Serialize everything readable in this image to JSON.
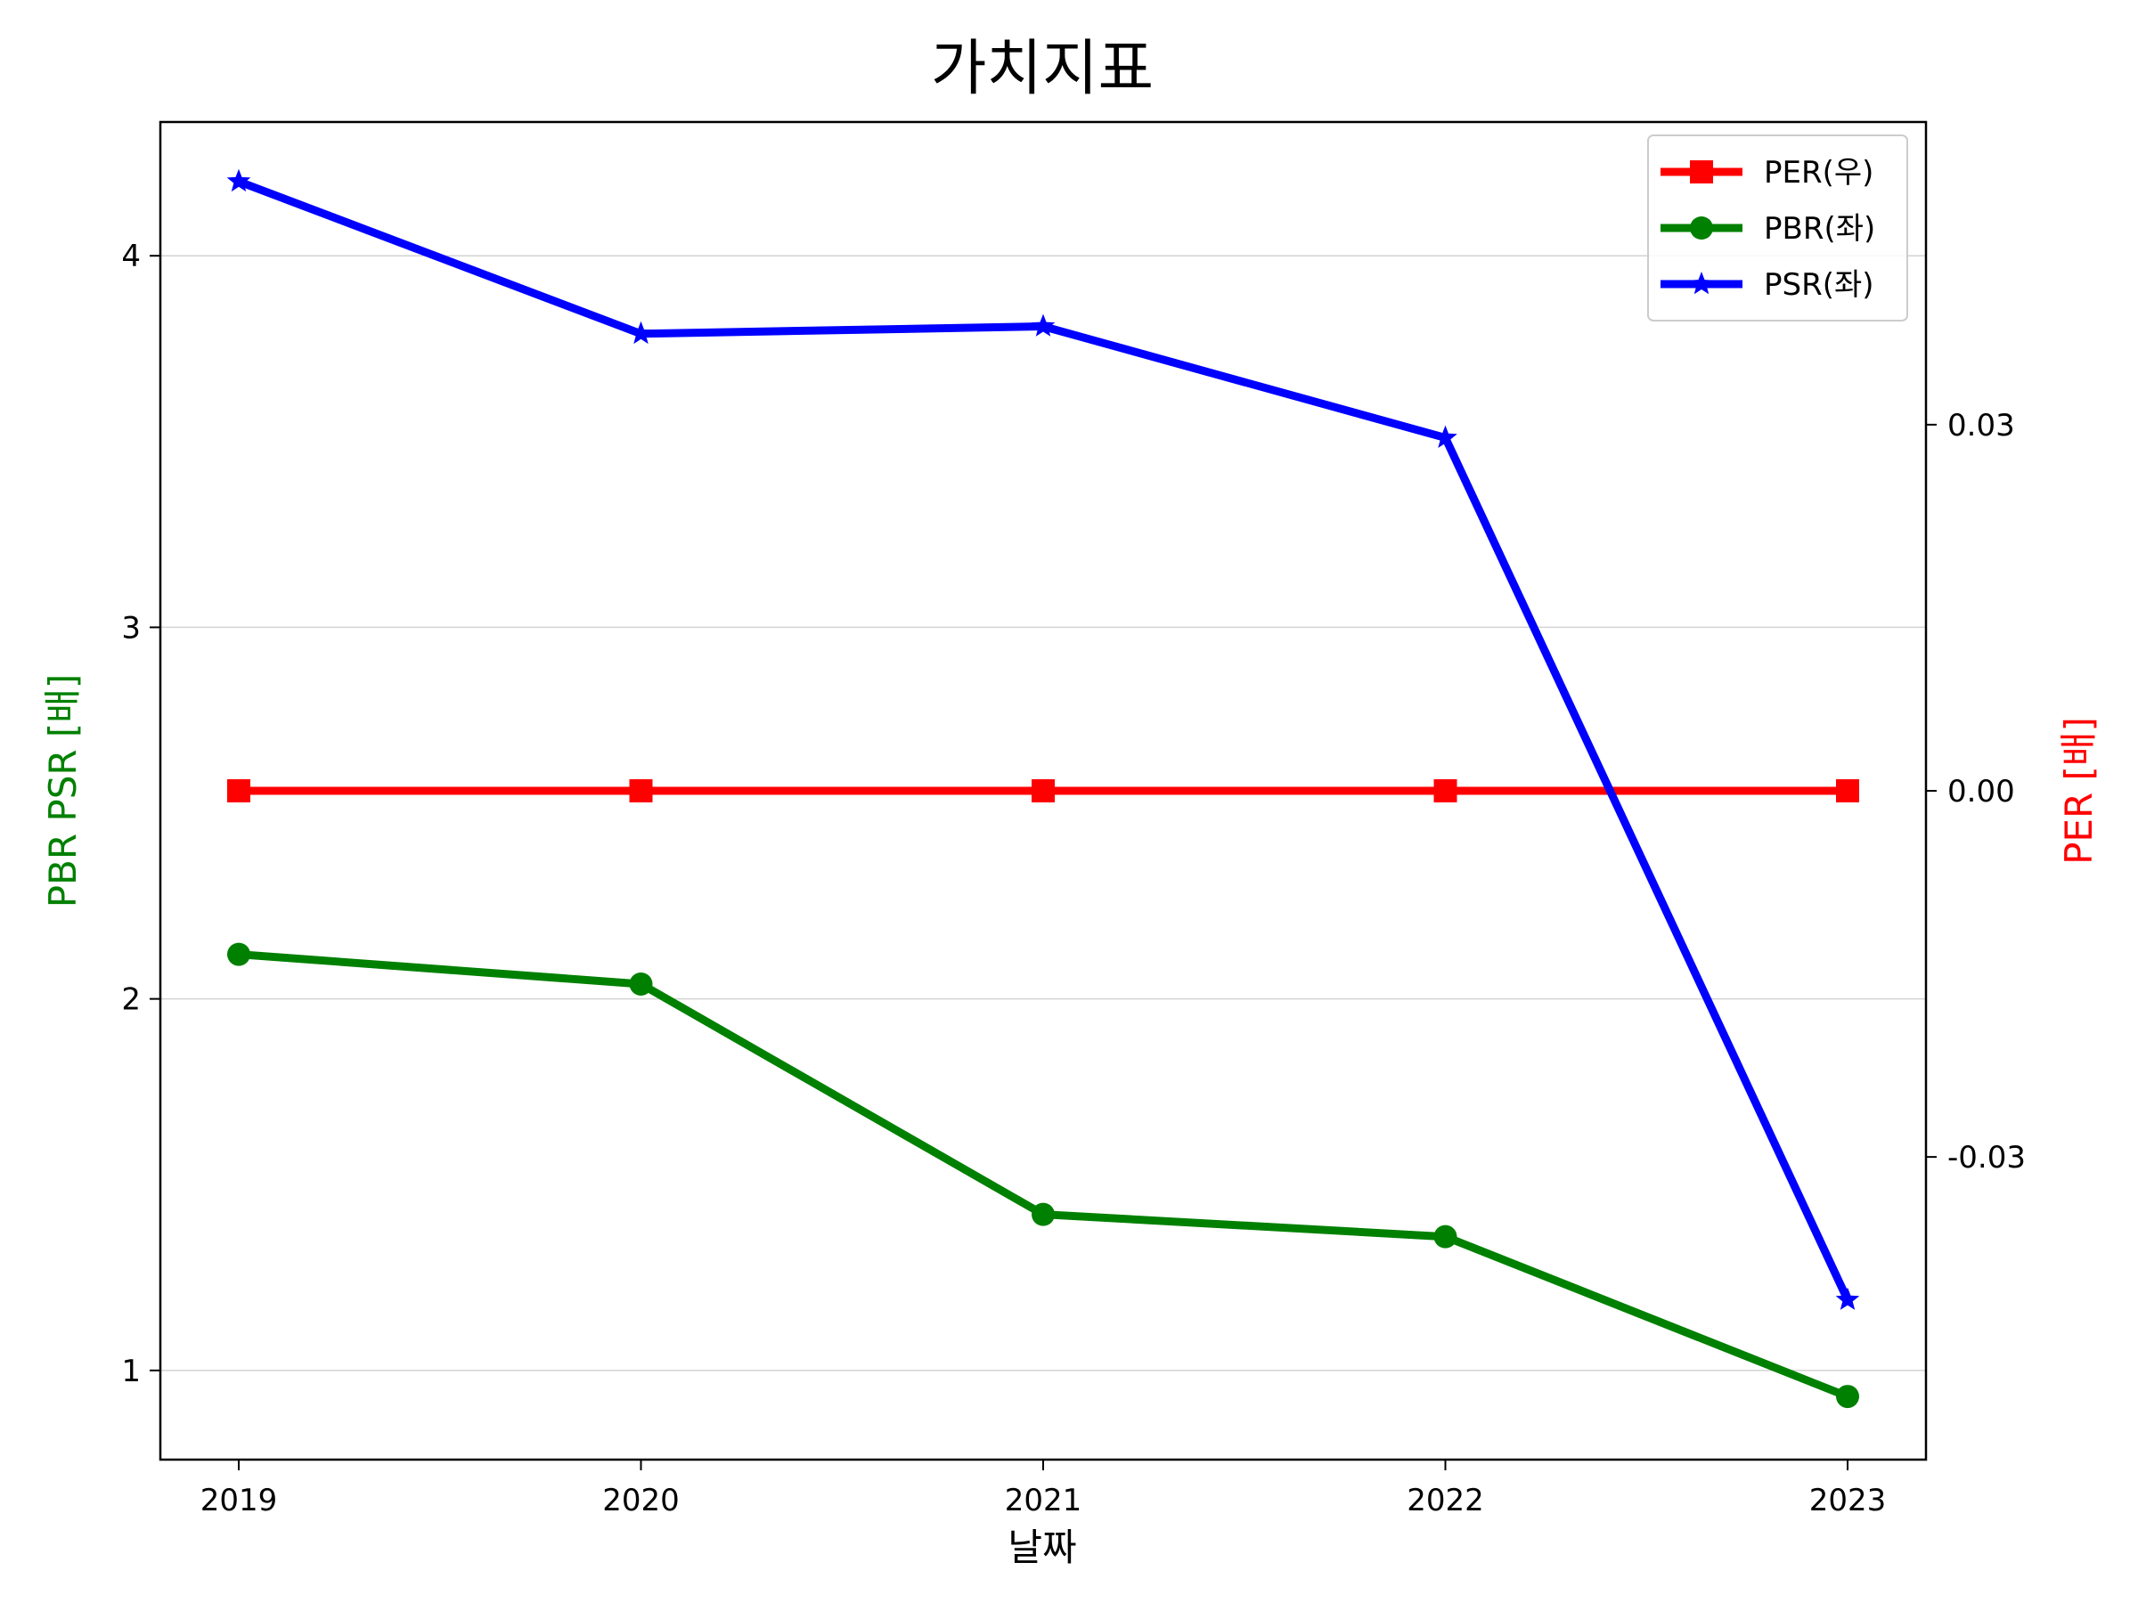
{
  "chart_data": {
    "type": "line",
    "title": "가치지표",
    "xlabel": "날짜",
    "ylabel_left": "PBR PSR [배]",
    "ylabel_right": "PER [배]",
    "categories": [
      "2019",
      "2020",
      "2021",
      "2022",
      "2023"
    ],
    "left_axis": {
      "ylim": [
        0.76,
        4.36
      ],
      "ticks": [
        1,
        2,
        3,
        4
      ],
      "tick_labels": [
        "1",
        "2",
        "3",
        "4"
      ],
      "grid": true
    },
    "right_axis": {
      "ylim": [
        -0.0548,
        0.0548
      ],
      "ticks": [
        -0.03,
        0.0,
        0.03
      ],
      "tick_labels": [
        "-0.03",
        "0.00",
        "0.03"
      ]
    },
    "series": [
      {
        "name": "PER(우)",
        "axis": "right",
        "color": "#ff0000",
        "marker": "square",
        "values": [
          0,
          0,
          0,
          0,
          0
        ]
      },
      {
        "name": "PBR(좌)",
        "axis": "left",
        "color": "#008000",
        "marker": "circle",
        "values": [
          2.12,
          2.04,
          1.42,
          1.36,
          0.93
        ]
      },
      {
        "name": "PSR(좌)",
        "axis": "left",
        "color": "#0000ff",
        "marker": "star",
        "values": [
          4.2,
          3.79,
          3.81,
          3.51,
          1.19
        ]
      }
    ],
    "legend_position": "top-right",
    "colors": {
      "axis_left_label": "#008000",
      "axis_right_label": "#ff0000",
      "grid": "#d3d3d3"
    }
  }
}
